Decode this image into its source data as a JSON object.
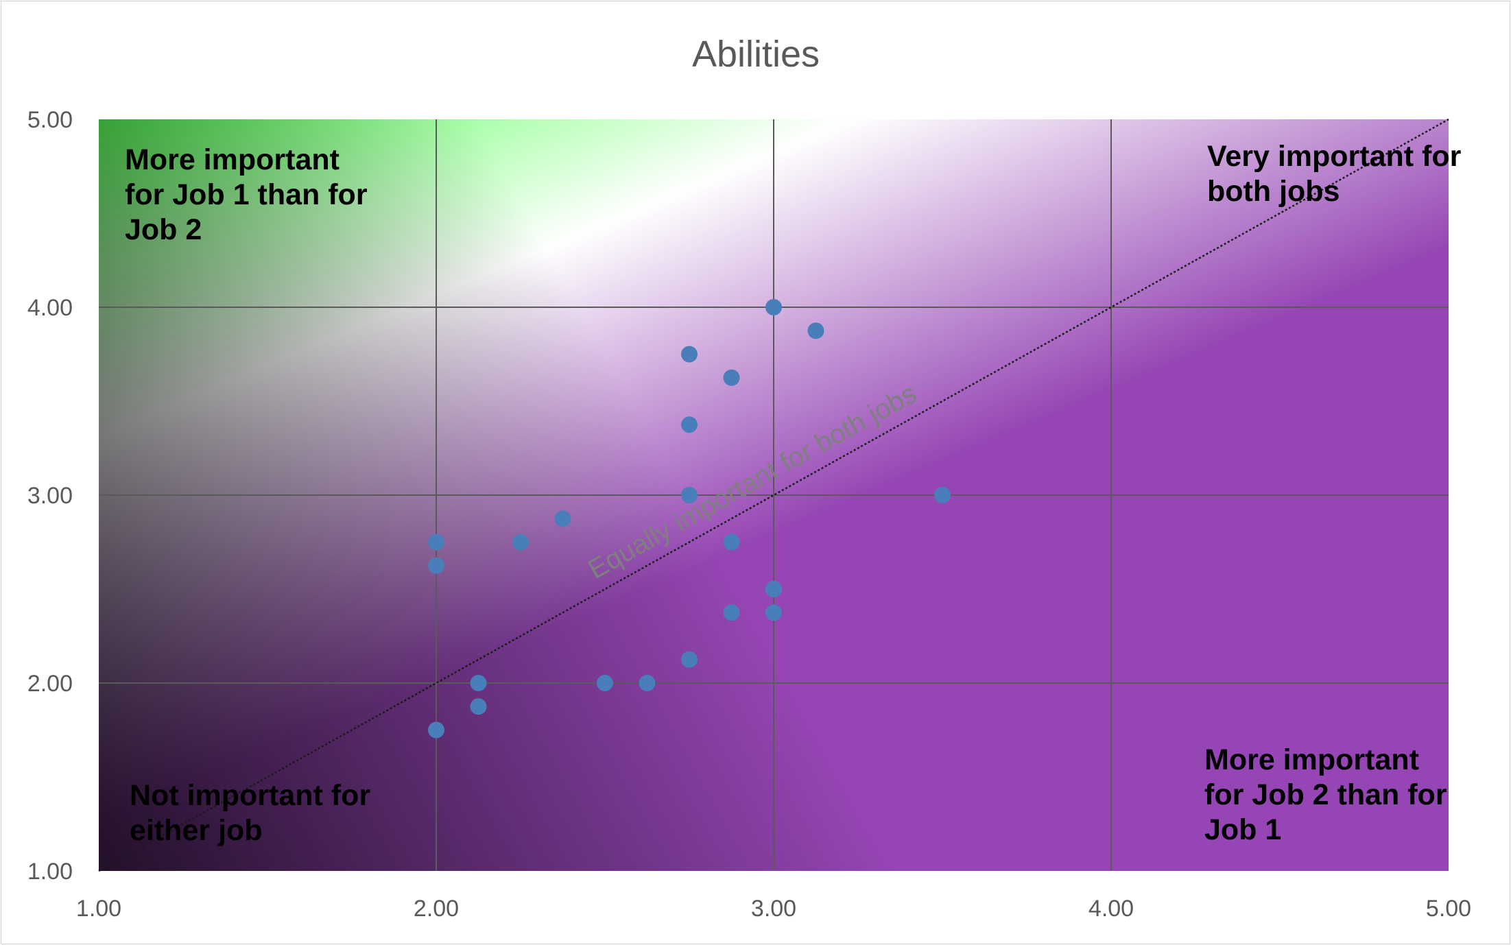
{
  "chart_data": {
    "type": "scatter",
    "title": "Abilities",
    "xlabel": "",
    "ylabel": "",
    "xlim": [
      1,
      5
    ],
    "ylim": [
      1,
      5
    ],
    "x_ticks": [
      "1.00",
      "2.00",
      "3.00",
      "4.00",
      "5.00"
    ],
    "y_ticks": [
      "1.00",
      "2.00",
      "3.00",
      "4.00",
      "5.00"
    ],
    "grid": true,
    "legend": "none",
    "point_color": "#4a7ebb",
    "gradient_colors": {
      "job1": "#33ff33",
      "job2": "#9545b4",
      "neither": "#3a3a3a",
      "both": "#ffffff"
    },
    "points": [
      {
        "x": 3.0,
        "y": 4.0
      },
      {
        "x": 3.125,
        "y": 3.875
      },
      {
        "x": 2.75,
        "y": 3.75
      },
      {
        "x": 2.875,
        "y": 3.625
      },
      {
        "x": 2.75,
        "y": 3.375
      },
      {
        "x": 2.75,
        "y": 3.0
      },
      {
        "x": 3.5,
        "y": 3.0
      },
      {
        "x": 2.375,
        "y": 2.875
      },
      {
        "x": 2.0,
        "y": 2.75
      },
      {
        "x": 2.25,
        "y": 2.75
      },
      {
        "x": 2.875,
        "y": 2.75
      },
      {
        "x": 2.0,
        "y": 2.625
      },
      {
        "x": 3.0,
        "y": 2.5
      },
      {
        "x": 2.875,
        "y": 2.375
      },
      {
        "x": 3.0,
        "y": 2.375
      },
      {
        "x": 2.75,
        "y": 2.125
      },
      {
        "x": 2.125,
        "y": 2.0
      },
      {
        "x": 2.5,
        "y": 2.0
      },
      {
        "x": 2.625,
        "y": 2.0
      },
      {
        "x": 2.125,
        "y": 1.875
      },
      {
        "x": 2.0,
        "y": 1.75
      }
    ],
    "reference_line": {
      "from": [
        1,
        1
      ],
      "to": [
        5,
        5
      ],
      "label": "Equally important for both jobs"
    },
    "annotations": {
      "top_left": [
        "More important",
        "for Job 1 than for",
        "Job 2"
      ],
      "top_right": [
        "Very important for",
        "both jobs"
      ],
      "bottom_left": [
        "Not important for",
        "either job"
      ],
      "bottom_right": [
        "More important",
        "for Job 2 than for",
        "Job 1"
      ]
    }
  }
}
